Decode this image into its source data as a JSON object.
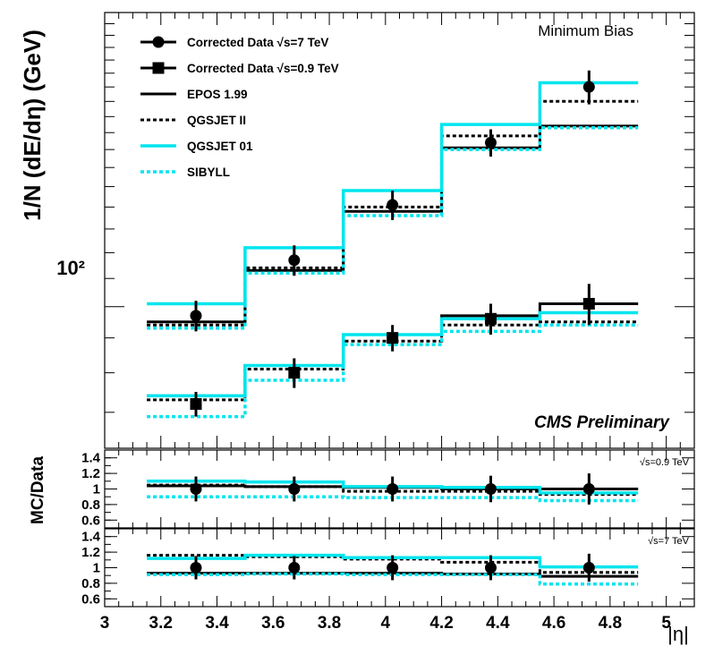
{
  "chart_data": {
    "type": "histogram-with-points",
    "ylabel": "1/N (dE/dη) (GeV)",
    "xlabel": "|η|",
    "annotation_top": "Minimum Bias",
    "annotation_bottom": "CMS Preliminary",
    "xlim": [
      3.0,
      5.1
    ],
    "x_ticks": [
      "3",
      "3.2",
      "3.4",
      "3.6",
      "3.8",
      "4",
      "4.2",
      "4.4",
      "4.6",
      "4.8",
      "5"
    ],
    "main": {
      "yscale": "log",
      "ylim": [
        62,
        270
      ],
      "y_tick_label": "10²",
      "y_tick_value": 100,
      "bin_edges": [
        3.15,
        3.5,
        3.85,
        4.2,
        4.55,
        4.9
      ],
      "bin_centers": [
        3.325,
        3.675,
        4.025,
        4.375,
        4.725
      ],
      "series": [
        {
          "name": "Corrected Data √s=7 TeV",
          "kind": "points",
          "marker": "circle",
          "values": [
            97,
            117,
            141,
            174,
            210
          ],
          "errors": [
            5,
            6,
            7,
            8,
            12
          ]
        },
        {
          "name": "Corrected Data √s=0.9 TeV",
          "kind": "points",
          "marker": "square",
          "values": [
            72,
            80,
            90,
            96,
            101
          ],
          "errors": [
            3,
            4,
            4,
            5,
            7
          ]
        },
        {
          "name": "EPOS 1.99",
          "kind": "line",
          "style": "solid",
          "color": "#000000",
          "values_7tev": [
            95,
            113,
            138,
            171,
            184
          ],
          "values_09tev": [
            74,
            82,
            91,
            97,
            101
          ]
        },
        {
          "name": "QGSJET II",
          "kind": "line",
          "style": "dotted",
          "color": "#000000",
          "values_7tev": [
            94,
            114,
            140,
            178,
            200
          ],
          "values_09tev": [
            73,
            81,
            89,
            94,
            95
          ]
        },
        {
          "name": "QGSJET 01",
          "kind": "line",
          "style": "solid",
          "color": "#00e5ee",
          "values_7tev": [
            101,
            122,
            148,
            185,
            213
          ],
          "values_09tev": [
            74,
            82,
            91,
            96,
            98
          ]
        },
        {
          "name": "SIBYLL",
          "kind": "line",
          "style": "dotted",
          "color": "#00e5ee",
          "values_7tev": [
            93,
            112,
            136,
            170,
            183
          ],
          "values_09tev": [
            69,
            78,
            88,
            92,
            94
          ]
        }
      ]
    },
    "ratio_panels": [
      {
        "ylabel": "MC/Data",
        "label": "√s=0.9 TeV",
        "ylim": [
          0.5,
          1.5
        ],
        "y_ticks": [
          "1.4",
          "1.2",
          "1",
          "0.8",
          "0.6"
        ],
        "y_tick_values": [
          1.4,
          1.2,
          1.0,
          0.8,
          0.6
        ],
        "data_values": [
          1.0,
          1.0,
          1.0,
          1.0,
          1.0
        ],
        "data_errors": [
          0.16,
          0.16,
          0.16,
          0.17,
          0.2
        ],
        "lines": [
          {
            "name": "EPOS 1.99",
            "values": [
              1.04,
              1.03,
              1.02,
              1.0,
              1.0
            ]
          },
          {
            "name": "QGSJET II",
            "values": [
              1.05,
              1.03,
              0.97,
              0.97,
              0.93
            ]
          },
          {
            "name": "QGSJET 01",
            "values": [
              1.1,
              1.09,
              1.03,
              1.02,
              0.95
            ]
          },
          {
            "name": "SIBYLL",
            "values": [
              0.9,
              0.9,
              0.89,
              0.89,
              0.85
            ]
          }
        ]
      },
      {
        "ylabel": "",
        "label": "√s=7 TeV",
        "ylim": [
          0.5,
          1.5
        ],
        "y_ticks": [
          "1.4",
          "1.2",
          "1",
          "0.8",
          "0.6"
        ],
        "y_tick_values": [
          1.4,
          1.2,
          1.0,
          0.8,
          0.6
        ],
        "data_values": [
          1.0,
          1.0,
          1.0,
          1.0,
          1.0
        ],
        "data_errors": [
          0.15,
          0.15,
          0.16,
          0.16,
          0.18
        ],
        "lines": [
          {
            "name": "EPOS 1.99",
            "values": [
              0.93,
              0.93,
              0.93,
              0.92,
              0.89
            ]
          },
          {
            "name": "QGSJET II",
            "values": [
              1.16,
              1.14,
              1.11,
              1.07,
              0.94
            ]
          },
          {
            "name": "QGSJET 01",
            "values": [
              1.12,
              1.16,
              1.13,
              1.13,
              1.01
            ]
          },
          {
            "name": "SIBYLL",
            "values": [
              0.91,
              0.92,
              0.91,
              0.91,
              0.79
            ]
          }
        ]
      }
    ]
  }
}
